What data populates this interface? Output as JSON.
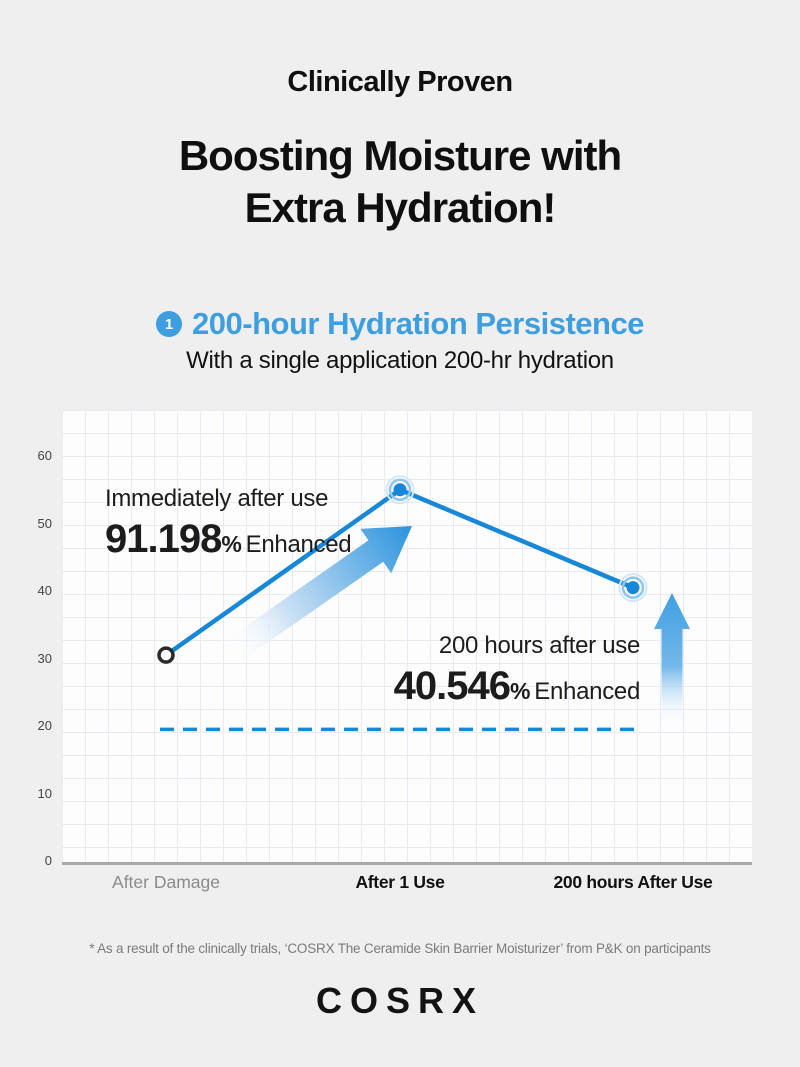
{
  "page": {
    "background_color": "#efefef"
  },
  "header": {
    "eyebrow": "Clinically Proven",
    "title_line1": "Boosting Moisture with",
    "title_line2": "Extra Hydration!"
  },
  "section": {
    "badge": "1",
    "heading": "200-hour Hydration Persistence",
    "subheading": "With a single application 200-hr hydration",
    "accent_color": "#3d9fe0"
  },
  "chart_data": {
    "type": "line",
    "title": "200-hour Hydration Persistence",
    "categories": [
      "After Damage",
      "After 1 Use",
      "200 hours After Use"
    ],
    "category_emphasis": [
      "muted",
      "bold",
      "bold"
    ],
    "points": [
      {
        "category": "After Damage",
        "value": 30.5,
        "marker": "open"
      },
      {
        "category": "After 1 Use",
        "value": 55,
        "marker": "highlight"
      },
      {
        "category": "200 hours After Use",
        "value": 40.5,
        "marker": "highlight"
      }
    ],
    "baseline": {
      "value": 19.5,
      "style": "dashed"
    },
    "yticks": [
      60,
      50,
      40,
      30,
      20,
      10,
      0
    ],
    "ylim": [
      0,
      66
    ],
    "grid": true,
    "legend": "none",
    "line_color": "#1787d8",
    "arrow_color": "#3f9fe2",
    "annotations": [
      {
        "label": "Immediately after use",
        "value": "91.198",
        "unit": "%",
        "suffix": "Enhanced"
      },
      {
        "label": "200 hours after use",
        "value": "40.546",
        "unit": "%",
        "suffix": "Enhanced"
      }
    ]
  },
  "footnote": "* As a result of the clinically trials, ‘COSRX The Ceramide Skin Barrier Moisturizer’ from P&K on participants",
  "logo": "COSRX"
}
